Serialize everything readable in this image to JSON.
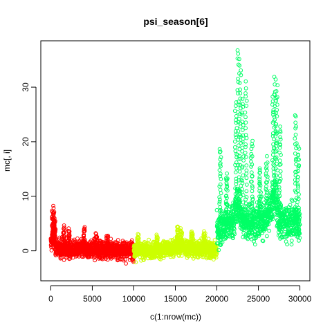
{
  "chart_data": {
    "type": "scatter",
    "title": "psi_season[6]",
    "xlabel": "c(1:nrow(mc))",
    "ylabel": "mc[, i]",
    "xlim": [
      -1200,
      31200
    ],
    "ylim": [
      -5.5,
      38.5
    ],
    "xticks": [
      0,
      5000,
      10000,
      15000,
      20000,
      25000,
      30000
    ],
    "yticks": [
      0,
      10,
      20,
      30
    ],
    "grid": false,
    "legend": "none",
    "marker": "open-circle",
    "series": [
      {
        "color": "#FF0000",
        "x_range": [
          1,
          10000
        ],
        "center": [
          [
            0,
            1.2
          ],
          [
            300,
            2.5
          ],
          [
            600,
            0.6
          ],
          [
            2000,
            0.2
          ],
          [
            4000,
            0.3
          ],
          [
            7000,
            0.2
          ],
          [
            10000,
            0.1
          ]
        ],
        "spread": 2.0,
        "spikes": [
          [
            250,
            8.0
          ],
          [
            350,
            6.8
          ],
          [
            500,
            5.6
          ],
          [
            1600,
            4.4
          ],
          [
            2200,
            3.9
          ],
          [
            4000,
            4.3
          ],
          [
            5500,
            3.1
          ],
          [
            6800,
            2.8
          ]
        ]
      },
      {
        "color": "#CCFF00",
        "x_range": [
          10001,
          20000
        ],
        "center": [
          [
            10000,
            0
          ],
          [
            12500,
            0
          ],
          [
            15500,
            0.8
          ],
          [
            17500,
            0.4
          ],
          [
            20000,
            0.1
          ]
        ],
        "spread": 1.9,
        "spikes": [
          [
            10500,
            2.8
          ],
          [
            12800,
            2.9
          ],
          [
            15300,
            4.6
          ],
          [
            15700,
            3.9
          ],
          [
            17000,
            3.6
          ],
          [
            18500,
            3.3
          ]
        ]
      },
      {
        "color": "#00FF66",
        "x_range": [
          20001,
          30000
        ],
        "center": [
          [
            20000,
            3.5
          ],
          [
            21000,
            5
          ],
          [
            22000,
            5.5
          ],
          [
            22500,
            9
          ],
          [
            23000,
            6
          ],
          [
            24000,
            5
          ],
          [
            25000,
            6
          ],
          [
            26000,
            5.5
          ],
          [
            26500,
            8
          ],
          [
            27000,
            10
          ],
          [
            27500,
            6
          ],
          [
            28500,
            5
          ],
          [
            29500,
            5.5
          ],
          [
            30000,
            5
          ]
        ],
        "spread": 4.2,
        "spikes": [
          [
            20400,
            19.0
          ],
          [
            21200,
            14.0
          ],
          [
            22300,
            27.0
          ],
          [
            22600,
            37.0
          ],
          [
            22800,
            35.0
          ],
          [
            23100,
            28.0
          ],
          [
            23500,
            31.0
          ],
          [
            24200,
            20.0
          ],
          [
            25200,
            15.0
          ],
          [
            26000,
            17.0
          ],
          [
            26800,
            29.0
          ],
          [
            27000,
            32.0
          ],
          [
            27200,
            30.0
          ],
          [
            27600,
            23.0
          ],
          [
            29500,
            25.0
          ],
          [
            29800,
            19.0
          ]
        ]
      }
    ]
  }
}
